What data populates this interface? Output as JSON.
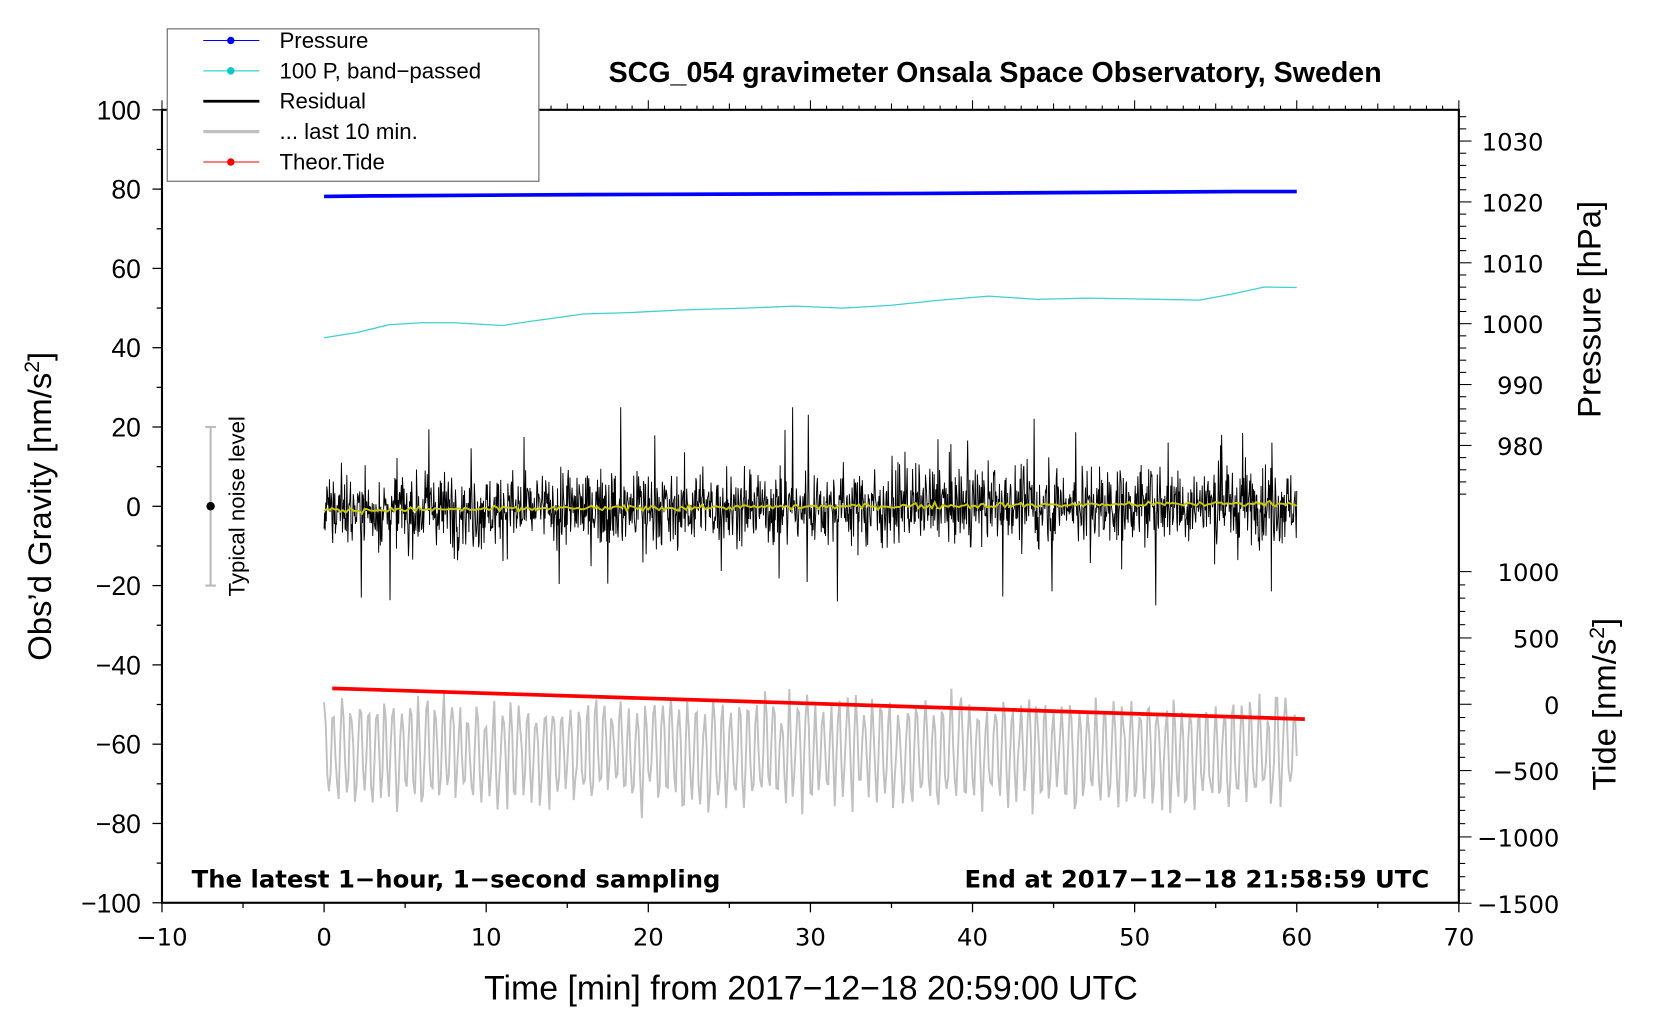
{
  "chart_data": {
    "type": "line",
    "title": "SCG_054 gravimeter Onsala Space Observatory, Sweden",
    "xlabel": "Time [min] from 2017−12−18 20:59:00 UTC",
    "ylabel": "Obs’d Gravity [nm/s",
    "ylabel_sup": "2",
    "ylabel_end": "]",
    "y2label": "Pressure [hPa]",
    "y3label": "Tide [nm/s",
    "y3label_sup": "2",
    "y3label_end": "]",
    "xlim": [
      -10,
      70
    ],
    "ylim": [
      -100,
      100
    ],
    "pressure_lim": [
      980,
      1030
    ],
    "tide_lim": [
      -1500,
      1000
    ],
    "x_ticks": [
      "−10",
      "0",
      "10",
      "20",
      "30",
      "40",
      "50",
      "60",
      "70"
    ],
    "x_tick_values": [
      -10,
      0,
      10,
      20,
      30,
      40,
      50,
      60,
      70
    ],
    "y_ticks": [
      "100",
      "80",
      "60",
      "40",
      "20",
      "0",
      "−20",
      "−40",
      "−60",
      "−80",
      "−100"
    ],
    "y_tick_values": [
      100,
      80,
      60,
      40,
      20,
      0,
      -20,
      -40,
      -60,
      -80,
      -100
    ],
    "pressure_ticks": [
      "1030",
      "1020",
      "1010",
      "1000",
      "990",
      "980"
    ],
    "pressure_tick_values": [
      1030,
      1020,
      1010,
      1000,
      990,
      980
    ],
    "tide_ticks": [
      "1000",
      "500",
      "0",
      "−500",
      "−1000",
      "−1500"
    ],
    "tide_tick_values": [
      1000,
      500,
      0,
      -500,
      -1000,
      -1500
    ],
    "legend_position": "top-left",
    "legend": [
      {
        "label": "Pressure",
        "color": "#0000ff",
        "marker": true
      },
      {
        "label": "100 P, band−passed",
        "color": "#00c8c8",
        "marker": true
      },
      {
        "label": "Residual",
        "color": "#000000",
        "marker": false
      },
      {
        "label": "... last 10 min.",
        "color": "#c0c0c0",
        "marker": false
      },
      {
        "label": "Theor.Tide",
        "color": "#ff0000",
        "marker": true
      }
    ],
    "annotations": {
      "left": "The latest 1−hour, 1−second sampling",
      "right": "End at 2017−12−18 21:58:59 UTC",
      "noise": "Typical noise level"
    },
    "noise_bar": {
      "x": -7,
      "center": 0,
      "half_range": 20
    },
    "series": [
      {
        "name": "Pressure",
        "unit": "hPa",
        "color": "#0000ff",
        "x": [
          0,
          3,
          16,
          37,
          56,
          60
        ],
        "y": [
          1020.9,
          1021.0,
          1021.2,
          1021.4,
          1021.7,
          1021.7
        ]
      },
      {
        "name": "100 P, band-passed",
        "unit": "nm/s2",
        "color": "#40d0d0",
        "x": [
          0,
          2,
          4,
          6,
          8,
          11,
          13,
          16,
          19,
          22,
          26,
          29,
          32,
          35,
          38,
          41,
          44,
          47,
          50,
          54,
          56,
          58,
          60
        ],
        "y": [
          42.5,
          43.8,
          45.8,
          46.3,
          46.3,
          45.6,
          46.8,
          48.5,
          48.9,
          49.5,
          50,
          50.5,
          50,
          50.7,
          52,
          53,
          52.2,
          52.5,
          52.3,
          52,
          53.5,
          55.3,
          55.2
        ]
      },
      {
        "name": "Residual",
        "unit": "nm/s2",
        "color": "#000000",
        "x_range": [
          0,
          60
        ],
        "mean_start": -1,
        "mean_end": 0.8,
        "std": 6.5,
        "min": -25,
        "max": 25
      },
      {
        "name": "Residual smoothed",
        "unit": "nm/s2",
        "color": "#c8c800",
        "x_range": [
          0,
          60
        ],
        "mean_start": -1,
        "mean_end": 0.8
      },
      {
        "name": "... last 10 min.",
        "unit": "nm/s2",
        "color": "#c0c0c0",
        "x_range": [
          0,
          60
        ],
        "mean": -62,
        "min": -81,
        "max": -42
      },
      {
        "name": "Theor.Tide",
        "unit": "nm/s2",
        "color": "#ff0000",
        "x": [
          0.5,
          60.5
        ],
        "y": [
          120,
          -112
        ]
      }
    ]
  }
}
